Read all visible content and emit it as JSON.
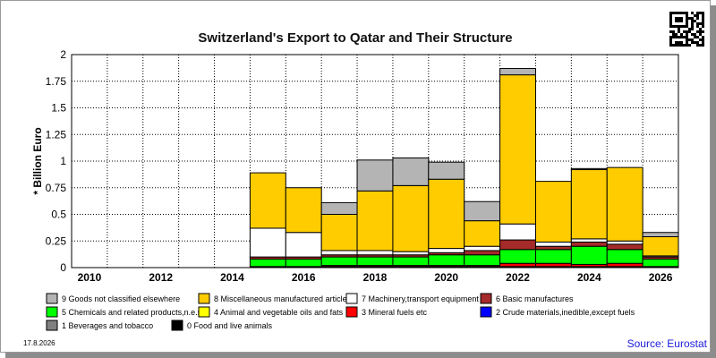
{
  "chart_data": {
    "type": "bar",
    "stacked": true,
    "title": "Switzerland's Export to Qatar and Their Structure",
    "ylabel": "* Billion Euro",
    "xlabel": "",
    "ylim": [
      0,
      2
    ],
    "y_ticks": [
      "0",
      "0.25",
      "0.5",
      "0.75",
      "1",
      "1.25",
      "1.5",
      "1.75",
      "2"
    ],
    "x_tick_labels": [
      "2010",
      "2012",
      "2014",
      "2016",
      "2018",
      "2020",
      "2022",
      "2024",
      "2026"
    ],
    "categories": [
      "2010",
      "2011",
      "2012",
      "2013",
      "2014",
      "2015",
      "2016",
      "2017",
      "2018",
      "2019",
      "2020",
      "2021",
      "2022",
      "2023",
      "2024",
      "2025",
      "2026"
    ],
    "grid": true,
    "legend_position": "bottom",
    "series": [
      {
        "name": "0 Food and live animals",
        "color": "#000000",
        "values": [
          0,
          0,
          0,
          0,
          0,
          0.01,
          0.01,
          0.01,
          0.01,
          0.01,
          0.01,
          0.01,
          0.01,
          0.01,
          0.01,
          0.01,
          0.005
        ]
      },
      {
        "name": "1 Beverages and tobacco",
        "color": "#808080",
        "values": [
          0,
          0,
          0,
          0,
          0,
          0,
          0,
          0,
          0,
          0,
          0,
          0,
          0,
          0,
          0,
          0,
          0
        ]
      },
      {
        "name": "2 Crude materials,inedible,except fuels",
        "color": "#0000ff",
        "values": [
          0,
          0,
          0,
          0,
          0,
          0,
          0,
          0,
          0,
          0,
          0,
          0,
          0,
          0,
          0,
          0,
          0
        ]
      },
      {
        "name": "3 Mineral fuels etc",
        "color": "#ff0000",
        "values": [
          0,
          0,
          0,
          0,
          0,
          0,
          0,
          0.01,
          0.01,
          0.01,
          0.01,
          0.01,
          0.03,
          0.03,
          0.02,
          0.03,
          0.005
        ]
      },
      {
        "name": "4 Animal and vegetable oils and fats",
        "color": "#ffff00",
        "values": [
          0,
          0,
          0,
          0,
          0,
          0,
          0,
          0,
          0,
          0,
          0,
          0,
          0,
          0,
          0,
          0,
          0
        ]
      },
      {
        "name": "5 Chemicals and related products,n.e.s.",
        "color": "#00ff00",
        "values": [
          0,
          0,
          0,
          0,
          0,
          0.07,
          0.07,
          0.08,
          0.08,
          0.08,
          0.1,
          0.1,
          0.13,
          0.13,
          0.17,
          0.13,
          0.07
        ]
      },
      {
        "name": "6 Basic manufactures",
        "color": "#a52a2a",
        "values": [
          0,
          0,
          0,
          0,
          0,
          0.02,
          0.02,
          0.02,
          0.02,
          0.02,
          0.02,
          0.04,
          0.09,
          0.03,
          0.04,
          0.05,
          0.02
        ]
      },
      {
        "name": "7 Machinery,transport equipment",
        "color": "#ffffff",
        "values": [
          0,
          0,
          0,
          0,
          0,
          0.27,
          0.23,
          0.04,
          0.04,
          0.03,
          0.04,
          0.04,
          0.15,
          0.04,
          0.03,
          0.03,
          0.01
        ]
      },
      {
        "name": "8 Miscellaneous manufactured articles",
        "color": "#ffcc00",
        "values": [
          0,
          0,
          0,
          0,
          0,
          0.52,
          0.42,
          0.34,
          0.56,
          0.62,
          0.65,
          0.24,
          1.4,
          0.57,
          0.65,
          0.69,
          0.18
        ]
      },
      {
        "name": "9 Goods not classified elsewhere",
        "color": "#b4b4b4",
        "values": [
          0,
          0,
          0,
          0,
          0,
          0,
          0,
          0.11,
          0.29,
          0.26,
          0.16,
          0.18,
          0.06,
          0,
          0.01,
          0,
          0.04
        ]
      }
    ]
  },
  "legend_order": [
    9,
    8,
    7,
    6,
    5,
    4,
    3,
    2,
    1,
    0
  ],
  "date_stamp": "17.8.2026",
  "source": "Source: Eurostat",
  "icons": {
    "qr": "qr-code-icon"
  }
}
